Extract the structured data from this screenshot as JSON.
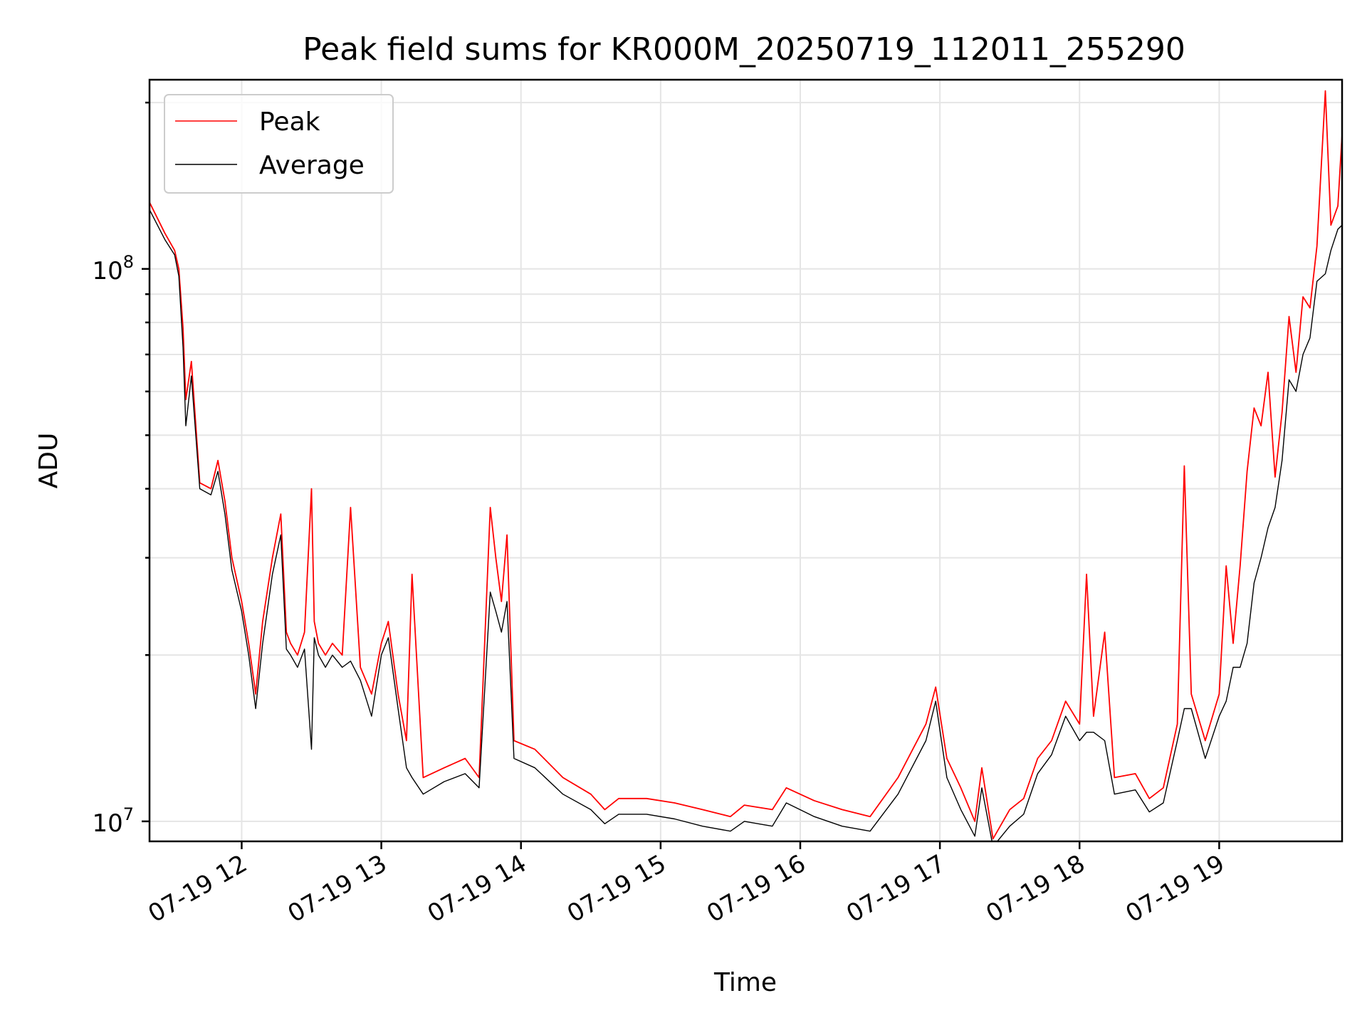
{
  "chart_data": {
    "type": "line",
    "title": "Peak field sums for KR000M_20250719_112011_255290",
    "xlabel": "Time",
    "ylabel": "ADU",
    "x_unit": "hours on 2025-07-19",
    "xlim": [
      11.34,
      19.88
    ],
    "ylim": [
      9200000.0,
      220000000.0
    ],
    "yscale": "log",
    "grid": true,
    "legend_position": "upper left",
    "x_ticks": [
      {
        "value": 12,
        "label": "07-19 12"
      },
      {
        "value": 13,
        "label": "07-19 13"
      },
      {
        "value": 14,
        "label": "07-19 14"
      },
      {
        "value": 15,
        "label": "07-19 15"
      },
      {
        "value": 16,
        "label": "07-19 16"
      },
      {
        "value": 17,
        "label": "07-19 17"
      },
      {
        "value": 18,
        "label": "07-19 18"
      },
      {
        "value": 19,
        "label": "07-19 19"
      }
    ],
    "y_major_ticks": [
      {
        "value": 10000000,
        "label": "10",
        "exponent": "7"
      },
      {
        "value": 100000000,
        "label": "10",
        "exponent": "8"
      }
    ],
    "series": [
      {
        "name": "Peak",
        "color": "#ff0000",
        "x": [
          11.34,
          11.45,
          11.52,
          11.55,
          11.58,
          11.6,
          11.64,
          11.7,
          11.78,
          11.83,
          11.88,
          11.93,
          12.0,
          12.05,
          12.1,
          12.15,
          12.22,
          12.28,
          12.32,
          12.35,
          12.4,
          12.45,
          12.5,
          12.52,
          12.55,
          12.6,
          12.65,
          12.72,
          12.78,
          12.85,
          12.93,
          13.0,
          13.05,
          13.12,
          13.18,
          13.22,
          13.3,
          13.45,
          13.6,
          13.7,
          13.78,
          13.82,
          13.86,
          13.9,
          13.95,
          14.1,
          14.3,
          14.5,
          14.6,
          14.7,
          14.9,
          15.1,
          15.3,
          15.5,
          15.6,
          15.8,
          15.9,
          16.1,
          16.3,
          16.5,
          16.7,
          16.9,
          16.97,
          17.05,
          17.15,
          17.25,
          17.3,
          17.38,
          17.5,
          17.6,
          17.7,
          17.8,
          17.9,
          18.0,
          18.05,
          18.1,
          18.18,
          18.25,
          18.4,
          18.5,
          18.6,
          18.7,
          18.75,
          18.8,
          18.9,
          19.0,
          19.05,
          19.1,
          19.15,
          19.2,
          19.25,
          19.3,
          19.35,
          19.4,
          19.45,
          19.5,
          19.55,
          19.6,
          19.65,
          19.7,
          19.76,
          19.8,
          19.85,
          19.88
        ],
        "y": [
          132000000.0,
          116000000.0,
          108000000.0,
          100000000.0,
          78000000.0,
          58000000.0,
          68000000.0,
          41000000.0,
          40000000.0,
          45000000.0,
          38000000.0,
          30000000.0,
          25000000.0,
          21000000.0,
          17000000.0,
          23000000.0,
          30000000.0,
          36000000.0,
          22000000.0,
          21000000.0,
          20000000.0,
          22000000.0,
          40000000.0,
          23000000.0,
          21000000.0,
          20000000.0,
          21000000.0,
          20000000.0,
          37000000.0,
          19000000.0,
          17000000.0,
          21000000.0,
          23000000.0,
          17000000.0,
          14000000.0,
          28000000.0,
          12000000.0,
          12500000.0,
          13000000.0,
          12000000.0,
          37000000.0,
          30000000.0,
          25000000.0,
          33000000.0,
          14000000.0,
          13500000.0,
          12000000.0,
          11200000.0,
          10500000.0,
          11000000.0,
          11000000.0,
          10800000.0,
          10500000.0,
          10200000.0,
          10700000.0,
          10500000.0,
          11500000.0,
          10900000.0,
          10500000.0,
          10200000.0,
          12000000.0,
          15000000.0,
          17500000.0,
          13000000.0,
          11500000.0,
          10000000.0,
          12500000.0,
          9300000.0,
          10500000.0,
          11000000.0,
          13000000.0,
          14000000.0,
          16500000.0,
          15000000.0,
          28000000.0,
          15500000.0,
          22000000.0,
          12000000.0,
          12200000.0,
          11000000.0,
          11500000.0,
          15000000.0,
          44000000.0,
          17000000.0,
          14000000.0,
          17000000.0,
          29000000.0,
          21000000.0,
          29000000.0,
          43000000.0,
          56000000.0,
          52000000.0,
          65000000.0,
          42000000.0,
          55000000.0,
          82000000.0,
          65000000.0,
          89000000.0,
          85000000.0,
          110000000.0,
          210000000.0,
          120000000.0,
          130000000.0,
          175000000.0
        ]
      },
      {
        "name": "Average",
        "color": "#000000",
        "x": [
          11.34,
          11.45,
          11.52,
          11.55,
          11.58,
          11.6,
          11.64,
          11.7,
          11.78,
          11.83,
          11.88,
          11.93,
          12.0,
          12.05,
          12.1,
          12.15,
          12.22,
          12.28,
          12.32,
          12.35,
          12.4,
          12.45,
          12.5,
          12.52,
          12.55,
          12.6,
          12.65,
          12.72,
          12.78,
          12.85,
          12.93,
          13.0,
          13.05,
          13.12,
          13.18,
          13.22,
          13.3,
          13.45,
          13.6,
          13.7,
          13.78,
          13.82,
          13.86,
          13.9,
          13.95,
          14.1,
          14.3,
          14.5,
          14.6,
          14.7,
          14.9,
          15.1,
          15.3,
          15.5,
          15.6,
          15.8,
          15.9,
          16.1,
          16.3,
          16.5,
          16.7,
          16.9,
          16.97,
          17.05,
          17.15,
          17.25,
          17.3,
          17.38,
          17.5,
          17.6,
          17.7,
          17.8,
          17.9,
          18.0,
          18.05,
          18.1,
          18.18,
          18.25,
          18.4,
          18.5,
          18.6,
          18.7,
          18.75,
          18.8,
          18.9,
          19.0,
          19.05,
          19.1,
          19.15,
          19.2,
          19.25,
          19.3,
          19.35,
          19.4,
          19.45,
          19.5,
          19.55,
          19.6,
          19.65,
          19.7,
          19.76,
          19.8,
          19.85,
          19.88
        ],
        "y": [
          128000000.0,
          113000000.0,
          106000000.0,
          97000000.0,
          72000000.0,
          52000000.0,
          64000000.0,
          40000000.0,
          39000000.0,
          43000000.0,
          36000000.0,
          28500000.0,
          24000000.0,
          20000000.0,
          16000000.0,
          21000000.0,
          28000000.0,
          33000000.0,
          20500000.0,
          20000000.0,
          19000000.0,
          20500000.0,
          13500000.0,
          21500000.0,
          20000000.0,
          19000000.0,
          20000000.0,
          19000000.0,
          19500000.0,
          18000000.0,
          15500000.0,
          20000000.0,
          21500000.0,
          16000000.0,
          12500000.0,
          12000000.0,
          11200000.0,
          11800000.0,
          12200000.0,
          11500000.0,
          26000000.0,
          24000000.0,
          22000000.0,
          25000000.0,
          13000000.0,
          12500000.0,
          11200000.0,
          10500000.0,
          9900000.0,
          10300000.0,
          10300000.0,
          10100000.0,
          9800000.0,
          9600000.0,
          10000000.0,
          9800000.0,
          10800000.0,
          10200000.0,
          9800000.0,
          9600000.0,
          11200000.0,
          14000000.0,
          16500000.0,
          12000000.0,
          10500000.0,
          9400000.0,
          11500000.0,
          9000000.0,
          9800000.0,
          10300000.0,
          12200000.0,
          13200000.0,
          15500000.0,
          14000000.0,
          14500000.0,
          14500000.0,
          14000000.0,
          11200000.0,
          11400000.0,
          10400000.0,
          10800000.0,
          14000000.0,
          16000000.0,
          16000000.0,
          13000000.0,
          15500000.0,
          16500000.0,
          19000000.0,
          19000000.0,
          21000000.0,
          27000000.0,
          30000000.0,
          34000000.0,
          37000000.0,
          45000000.0,
          63000000.0,
          60000000.0,
          70000000.0,
          75000000.0,
          95000000.0,
          98000000.0,
          108000000.0,
          118000000.0,
          120000000.0
        ]
      }
    ]
  }
}
